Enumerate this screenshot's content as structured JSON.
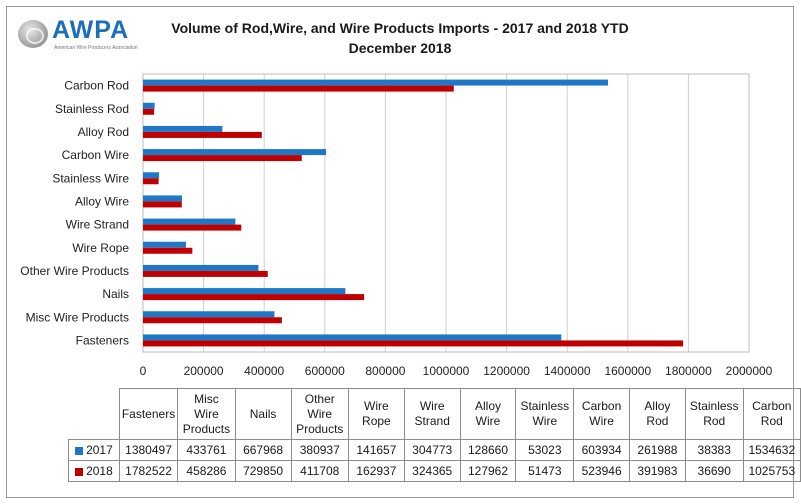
{
  "logo": {
    "brand": "AWPA",
    "tagline": "American Wire Producers Association"
  },
  "title_line1": "Volume of Rod,Wire, and Wire Products Imports - 2017 and 2018 YTD",
  "title_line2": "December 2018",
  "colors": {
    "s2017": "#1f77c8",
    "s2018": "#c00000"
  },
  "chart_data": {
    "type": "bar",
    "orientation": "horizontal",
    "categories": [
      "Fasteners",
      "Misc Wire Products",
      "Nails",
      "Other Wire Products",
      "Wire Rope",
      "Wire Strand",
      "Alloy Wire",
      "Stainless Wire",
      "Carbon Wire",
      "Alloy Rod",
      "Stainless Rod",
      "Carbon Rod"
    ],
    "table_headers": [
      [
        "Fasteners"
      ],
      [
        "Misc Wire",
        "Products"
      ],
      [
        "Nails"
      ],
      [
        "Other",
        "Wire",
        "Products"
      ],
      [
        "Wire",
        "Rope"
      ],
      [
        "Wire",
        "Strand"
      ],
      [
        "Alloy Wire"
      ],
      [
        "Stainless",
        "Wire"
      ],
      [
        "Carbon",
        "Wire"
      ],
      [
        "Alloy Rod"
      ],
      [
        "Stainless",
        "Rod"
      ],
      [
        "Carbon",
        "Rod"
      ]
    ],
    "series": [
      {
        "name": "2017",
        "values": [
          1380497,
          433761,
          667968,
          380937,
          141657,
          304773,
          128660,
          53023,
          603934,
          261988,
          38383,
          1534632
        ]
      },
      {
        "name": "2018",
        "values": [
          1782522,
          458286,
          729850,
          411708,
          162937,
          324365,
          127962,
          51473,
          523946,
          391983,
          36690,
          1025753
        ]
      }
    ],
    "xlim": [
      0,
      2000000
    ],
    "xticks": [
      "0",
      "200000",
      "400000",
      "600000",
      "800000",
      "1000000",
      "1200000",
      "1400000",
      "1600000",
      "1800000",
      "2000000"
    ],
    "grid": true,
    "legend": "data-table"
  }
}
